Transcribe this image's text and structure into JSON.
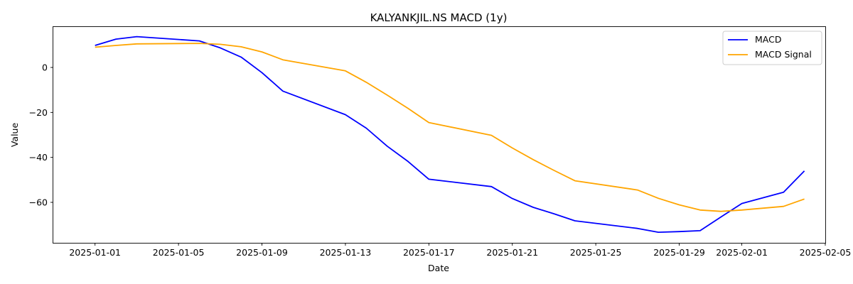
{
  "chart_data": {
    "type": "line",
    "title": "KALYANKJIL.NS MACD (1y)",
    "xlabel": "Date",
    "ylabel": "Value",
    "x_is_date": true,
    "xlim": [
      "2024-12-30",
      "2025-02-05"
    ],
    "ylim": [
      -78,
      18
    ],
    "xticks": [
      "2025-01-01",
      "2025-01-05",
      "2025-01-09",
      "2025-01-13",
      "2025-01-17",
      "2025-01-21",
      "2025-01-25",
      "2025-01-29",
      "2025-02-01",
      "2025-02-05"
    ],
    "yticks": [
      0,
      -20,
      -40,
      -60
    ],
    "ytick_labels": [
      "0",
      "−20",
      "−40",
      "−60"
    ],
    "grid": false,
    "legend_position": "top-right",
    "series": [
      {
        "name": "MACD",
        "color": "#0000ff",
        "x": [
          "2025-01-01",
          "2025-01-02",
          "2025-01-03",
          "2025-01-06",
          "2025-01-07",
          "2025-01-08",
          "2025-01-09",
          "2025-01-10",
          "2025-01-13",
          "2025-01-14",
          "2025-01-15",
          "2025-01-16",
          "2025-01-17",
          "2025-01-20",
          "2025-01-21",
          "2025-01-22",
          "2025-01-23",
          "2025-01-24",
          "2025-01-27",
          "2025-01-28",
          "2025-01-29",
          "2025-01-30",
          "2025-01-31",
          "2025-02-01",
          "2025-02-03",
          "2025-02-04"
        ],
        "y": [
          9.8,
          12.6,
          13.7,
          11.8,
          8.7,
          4.6,
          -2.3,
          -10.5,
          -21.0,
          -27.0,
          -35.0,
          -41.8,
          -49.7,
          -53.0,
          -58.3,
          -62.2,
          -65.1,
          -68.2,
          -71.6,
          -73.3,
          -73.0,
          -72.6,
          -66.5,
          -60.5,
          -55.5,
          -46.0
        ]
      },
      {
        "name": "MACD Signal",
        "color": "#ffa500",
        "x": [
          "2025-01-01",
          "2025-01-02",
          "2025-01-03",
          "2025-01-06",
          "2025-01-07",
          "2025-01-08",
          "2025-01-09",
          "2025-01-10",
          "2025-01-13",
          "2025-01-14",
          "2025-01-15",
          "2025-01-16",
          "2025-01-17",
          "2025-01-20",
          "2025-01-21",
          "2025-01-22",
          "2025-01-23",
          "2025-01-24",
          "2025-01-27",
          "2025-01-28",
          "2025-01-29",
          "2025-01-30",
          "2025-01-31",
          "2025-02-01",
          "2025-02-03",
          "2025-02-04"
        ],
        "y": [
          9.0,
          9.8,
          10.5,
          10.7,
          10.3,
          9.2,
          6.9,
          3.4,
          -1.5,
          -6.6,
          -12.3,
          -18.2,
          -24.5,
          -30.2,
          -35.8,
          -41.0,
          -45.8,
          -50.4,
          -54.5,
          -58.2,
          -61.1,
          -63.4,
          -64.0,
          -63.4,
          -61.8,
          -58.5
        ]
      }
    ]
  }
}
